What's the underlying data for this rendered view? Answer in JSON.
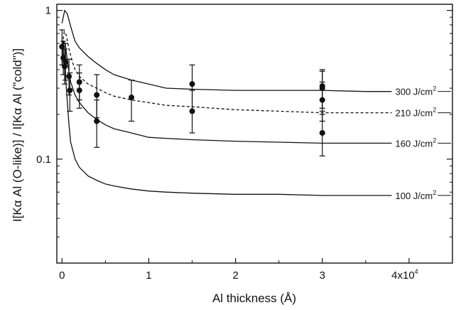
{
  "chart_data": {
    "type": "line",
    "title": "",
    "xlabel": "Al thickness (Å)",
    "ylabel": "I[Kα Al (O-like)] / I[Kα Al (\"cold\")]",
    "xlim": [
      -600,
      45000
    ],
    "ylim": [
      0.02,
      1.1
    ],
    "yscale": "log",
    "grid": false,
    "x_ticks": [
      {
        "value": 0,
        "label": "0"
      },
      {
        "value": 10000,
        "label": "1"
      },
      {
        "value": 20000,
        "label": "2"
      },
      {
        "value": 30000,
        "label": "3"
      },
      {
        "value": 40000,
        "label": "4x10",
        "exp": "4"
      }
    ],
    "y_ticks": [
      {
        "value": 1,
        "label": "1"
      },
      {
        "value": 0.1,
        "label": "0.1"
      }
    ],
    "series": [
      {
        "name": "300 J/cm",
        "label_exp": "2",
        "style": "solid",
        "x": [
          0,
          300,
          600,
          1000,
          1500,
          2000,
          3000,
          4000,
          5000,
          6000,
          8000,
          10000,
          12000,
          15000,
          20000,
          25000,
          30000,
          35000,
          38000
        ],
        "y": [
          0.82,
          1.0,
          0.95,
          0.78,
          0.62,
          0.56,
          0.49,
          0.44,
          0.4,
          0.37,
          0.34,
          0.32,
          0.3,
          0.295,
          0.29,
          0.29,
          0.29,
          0.285,
          0.285
        ]
      },
      {
        "name": "210 J/cm",
        "label_exp": "2",
        "style": "dashed",
        "x": [
          0,
          250,
          500,
          800,
          1200,
          1500,
          2000,
          3000,
          4000,
          5000,
          6000,
          8000,
          10000,
          12000,
          15000,
          20000,
          25000,
          30000,
          35000,
          38000
        ],
        "y": [
          0.55,
          0.72,
          0.68,
          0.55,
          0.45,
          0.4,
          0.36,
          0.32,
          0.3,
          0.28,
          0.265,
          0.25,
          0.24,
          0.23,
          0.225,
          0.215,
          0.21,
          0.205,
          0.205,
          0.205
        ]
      },
      {
        "name": "160 J/cm",
        "label_exp": "2",
        "style": "solid",
        "x": [
          0,
          200,
          400,
          700,
          1000,
          1500,
          2000,
          3000,
          4000,
          5000,
          6000,
          8000,
          10000,
          12000,
          15000,
          20000,
          25000,
          30000,
          35000,
          38000
        ],
        "y": [
          0.5,
          0.62,
          0.58,
          0.42,
          0.33,
          0.27,
          0.24,
          0.205,
          0.185,
          0.17,
          0.16,
          0.15,
          0.14,
          0.138,
          0.135,
          0.132,
          0.13,
          0.128,
          0.128,
          0.128
        ]
      },
      {
        "name": "100 J/cm",
        "label_exp": "2",
        "style": "solid",
        "x": [
          0,
          150,
          300,
          500,
          800,
          1000,
          1500,
          2000,
          3000,
          4000,
          5000,
          6000,
          8000,
          10000,
          12000,
          15000,
          20000,
          25000,
          30000,
          35000,
          38000
        ],
        "y": [
          0.45,
          0.52,
          0.45,
          0.3,
          0.17,
          0.13,
          0.1,
          0.088,
          0.077,
          0.072,
          0.068,
          0.066,
          0.063,
          0.061,
          0.06,
          0.059,
          0.058,
          0.058,
          0.057,
          0.057,
          0.057
        ]
      }
    ],
    "measured_points": [
      {
        "x": 0,
        "y": 0.57,
        "y_low": 0.43,
        "y_high": 0.74
      },
      {
        "x": 150,
        "y": 0.48,
        "y_low": 0.37,
        "y_high": 0.62
      },
      {
        "x": 300,
        "y": 0.42,
        "y_low": 0.32,
        "y_high": 0.55
      },
      {
        "x": 400,
        "y": 0.45,
        "y_low": 0.34,
        "y_high": 0.6
      },
      {
        "x": 800,
        "y": 0.36,
        "y_low": 0.27,
        "y_high": 0.47
      },
      {
        "x": 900,
        "y": 0.29,
        "y_low": 0.21,
        "y_high": 0.38
      },
      {
        "x": 2000,
        "y": 0.33,
        "y_low": 0.25,
        "y_high": 0.43
      },
      {
        "x": 2000,
        "y": 0.29,
        "y_low": 0.22,
        "y_high": 0.38
      },
      {
        "x": 4000,
        "y": 0.27,
        "y_low": 0.19,
        "y_high": 0.37
      },
      {
        "x": 4000,
        "y": 0.18,
        "y_low": 0.12,
        "y_high": 0.25
      },
      {
        "x": 8000,
        "y": 0.26,
        "y_low": 0.18,
        "y_high": 0.34
      },
      {
        "x": 15000,
        "y": 0.32,
        "y_low": 0.21,
        "y_high": 0.43
      },
      {
        "x": 15000,
        "y": 0.21,
        "y_low": 0.15,
        "y_high": 0.29
      },
      {
        "x": 30000,
        "y": 0.31,
        "y_low": 0.22,
        "y_high": 0.4
      },
      {
        "x": 30000,
        "y": 0.3,
        "y_low": 0.21,
        "y_high": 0.39
      },
      {
        "x": 30000,
        "y": 0.25,
        "y_low": 0.18,
        "y_high": 0.33
      },
      {
        "x": 30000,
        "y": 0.15,
        "y_low": 0.105,
        "y_high": 0.2
      }
    ]
  }
}
